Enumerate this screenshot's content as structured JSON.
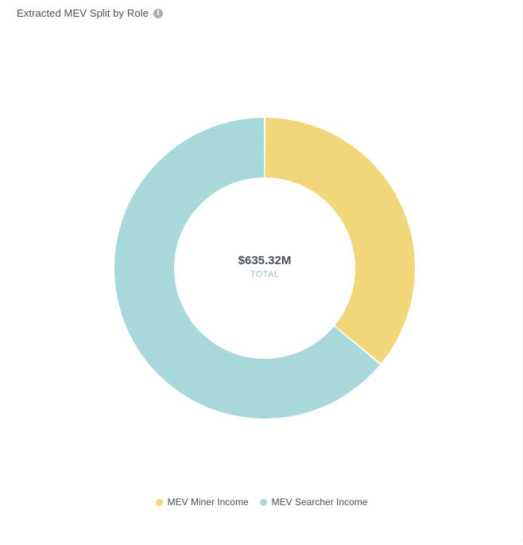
{
  "header": {
    "title": "Extracted MEV Split by Role",
    "info_icon": "info-icon"
  },
  "chart_data": {
    "type": "pie",
    "title": "Extracted MEV Split by Role",
    "donut": true,
    "center_value": "$635.32M",
    "center_label": "TOTAL",
    "legend_position": "bottom",
    "series": [
      {
        "name": "MEV Miner Income",
        "share": 0.36,
        "color": "#f2d67a"
      },
      {
        "name": "MEV Searcher Income",
        "share": 0.64,
        "color": "#a8d8d9"
      }
    ]
  }
}
